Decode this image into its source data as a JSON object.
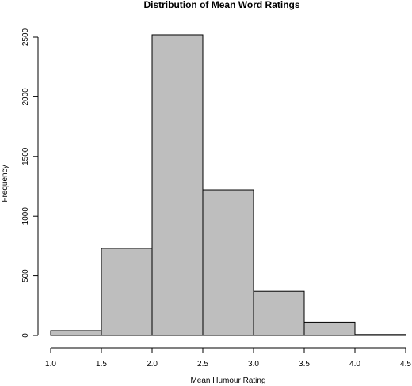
{
  "chart_data": {
    "type": "bar",
    "title": "Distribution of Mean Word Ratings",
    "xlabel": "Mean Humour Rating",
    "ylabel": "Frequency",
    "bins": [
      {
        "start": 1.0,
        "end": 1.5,
        "count": 40
      },
      {
        "start": 1.5,
        "end": 2.0,
        "count": 730
      },
      {
        "start": 2.0,
        "end": 2.5,
        "count": 2520
      },
      {
        "start": 2.5,
        "end": 3.0,
        "count": 1220
      },
      {
        "start": 3.0,
        "end": 3.5,
        "count": 370
      },
      {
        "start": 3.5,
        "end": 4.0,
        "count": 110
      },
      {
        "start": 4.0,
        "end": 4.5,
        "count": 8
      }
    ],
    "xticks": [
      "1.0",
      "1.5",
      "2.0",
      "2.5",
      "3.0",
      "3.5",
      "4.0",
      "4.5"
    ],
    "yticks": [
      "0",
      "500",
      "1000",
      "1500",
      "2000",
      "2500"
    ],
    "xlim": [
      1.0,
      4.5
    ],
    "ylim": [
      0,
      2500
    ],
    "grid": false,
    "bar_color": "#bebebe",
    "bar_edge_color": "#000000"
  }
}
